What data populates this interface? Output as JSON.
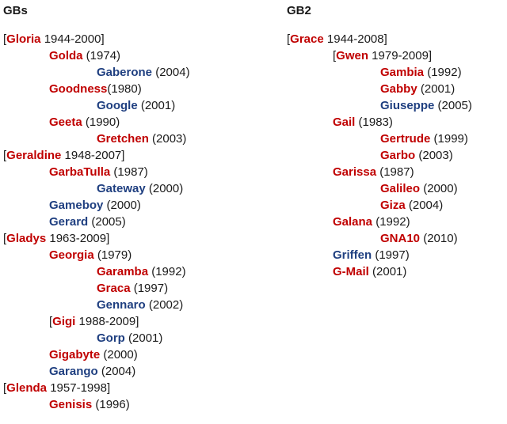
{
  "columns": [
    {
      "title": "GBs",
      "entries": [
        {
          "level": 0,
          "open": "[",
          "name": "Gloria",
          "detail": " 1944-2000",
          "close": "]",
          "color": "#c00000"
        },
        {
          "level": 1,
          "name": "Golda",
          "detail": " (1974)",
          "color": "#c00000"
        },
        {
          "level": 2,
          "name": "Gaberone",
          "detail": " (2004)",
          "color": "#1f3f80"
        },
        {
          "level": 1,
          "name": "Goodness",
          "detail": "(1980)",
          "color": "#c00000"
        },
        {
          "level": 2,
          "name": "Google",
          "detail": " (2001)",
          "color": "#1f3f80"
        },
        {
          "level": 1,
          "name": "Geeta",
          "detail": " (1990)",
          "color": "#c00000"
        },
        {
          "level": 2,
          "name": "Gretchen",
          "detail": " (2003)",
          "color": "#c00000"
        },
        {
          "level": 0,
          "open": "[",
          "name": "Geraldine",
          "detail": " 1948-2007",
          "close": "]",
          "color": "#c00000"
        },
        {
          "level": 1,
          "name": "GarbaTulla",
          "detail": " (1987)",
          "color": "#c00000"
        },
        {
          "level": 2,
          "name": "Gateway",
          "detail": " (2000)",
          "color": "#1f3f80"
        },
        {
          "level": 1,
          "name": "Gameboy",
          "detail": " (2000)",
          "color": "#1f3f80"
        },
        {
          "level": 1,
          "name": "Gerard",
          "detail": " (2005)",
          "color": "#1f3f80"
        },
        {
          "level": 0,
          "open": "[",
          "name": "Gladys",
          "detail": " 1963-2009",
          "close": "]",
          "color": "#c00000"
        },
        {
          "level": 1,
          "name": "Georgia",
          "detail": " (1979)",
          "color": "#c00000"
        },
        {
          "level": 2,
          "name": "Garamba",
          "detail": " (1992)",
          "color": "#c00000"
        },
        {
          "level": 2,
          "name": "Graca",
          "detail": " (1997)",
          "color": "#c00000"
        },
        {
          "level": 2,
          "name": "Gennaro",
          "detail": " (2002)",
          "color": "#1f3f80"
        },
        {
          "level": 1,
          "open": "[",
          "name": "Gigi",
          "detail": " 1988-2009",
          "close": "]",
          "color": "#c00000"
        },
        {
          "level": 2,
          "name": "Gorp",
          "detail": " (2001)",
          "color": "#1f3f80"
        },
        {
          "level": 1,
          "name": "Gigabyte",
          "detail": " (2000)",
          "color": "#c00000"
        },
        {
          "level": 1,
          "name": "Garango",
          "detail": " (2004)",
          "color": "#1f3f80"
        },
        {
          "level": 0,
          "open": "[",
          "name": "Glenda",
          "detail": " 1957-1998",
          "close": "]",
          "color": "#c00000"
        },
        {
          "level": 1,
          "name": "Genisis",
          "detail": " (1996)",
          "color": "#c00000"
        }
      ]
    },
    {
      "title": "GB2",
      "entries": [
        {
          "level": 0,
          "open": "[",
          "name": "Grace",
          "detail": " 1944-2008",
          "close": "]",
          "color": "#c00000"
        },
        {
          "level": 1,
          "open": "[",
          "name": "Gwen",
          "detail": " 1979-2009",
          "close": "]",
          "color": "#c00000"
        },
        {
          "level": 2,
          "name": "Gambia",
          "detail": " (1992)",
          "color": "#c00000"
        },
        {
          "level": 2,
          "name": "Gabby",
          "detail": " (2001)",
          "color": "#c00000"
        },
        {
          "level": 2,
          "name": "Giuseppe",
          "detail": " (2005)",
          "color": "#1f3f80"
        },
        {
          "level": 1,
          "name": "Gail",
          "detail": " (1983)",
          "color": "#c00000"
        },
        {
          "level": 2,
          "name": "Gertrude",
          "detail": " (1999)",
          "color": "#c00000"
        },
        {
          "level": 2,
          "name": "Garbo",
          "detail": " (2003)",
          "color": "#c00000"
        },
        {
          "level": 1,
          "name": "Garissa",
          "detail": " (1987)",
          "color": "#c00000"
        },
        {
          "level": 2,
          "name": "Galileo",
          "detail": " (2000)",
          "color": "#c00000"
        },
        {
          "level": 2,
          "name": "Giza",
          "detail": " (2004)",
          "color": "#c00000"
        },
        {
          "level": 1,
          "name": "Galana",
          "detail": " (1992)",
          "color": "#c00000"
        },
        {
          "level": 2,
          "name": "GNA10",
          "detail": " (2010)",
          "color": "#c00000"
        },
        {
          "level": 1,
          "name": "Griffen",
          "detail": " (1997)",
          "color": "#1f3f80"
        },
        {
          "level": 1,
          "name": "G-Mail",
          "detail": " (2001)",
          "color": "#c00000"
        }
      ]
    }
  ]
}
